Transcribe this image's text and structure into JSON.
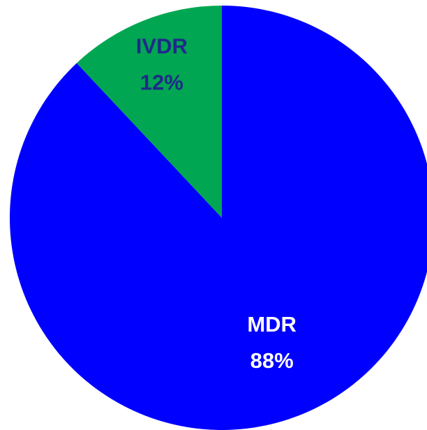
{
  "chart_data": {
    "type": "pie",
    "categories": [
      "MDR",
      "IVDR"
    ],
    "values": [
      88,
      12
    ],
    "value_labels": [
      "88%",
      "12%"
    ],
    "colors": [
      "#0000ff",
      "#00a651"
    ]
  }
}
